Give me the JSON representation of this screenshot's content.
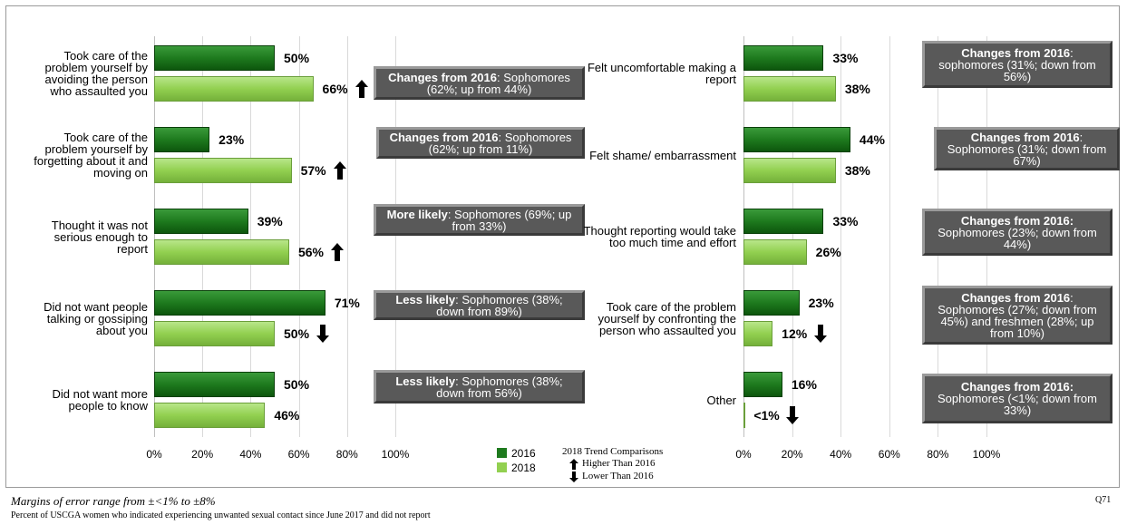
{
  "chart_data": [
    {
      "type": "bar",
      "orientation": "horizontal",
      "categories": [
        "Took care of the problem yourself by avoiding the person who assaulted you",
        "Took care of the problem yourself by forgetting about it and moving on",
        "Thought it was not serious enough to report",
        "Did not want people talking or gossiping about you",
        "Did not want more people to know"
      ],
      "series": [
        {
          "name": "2016",
          "color": "#1e7a1e",
          "values": [
            50,
            23,
            39,
            71,
            50
          ],
          "value_labels": [
            "50%",
            "23%",
            "39%",
            "71%",
            "50%"
          ]
        },
        {
          "name": "2018",
          "color": "#92d050",
          "values": [
            66,
            57,
            56,
            50,
            46
          ],
          "value_labels": [
            "66%",
            "57%",
            "56%",
            "50%",
            "46%"
          ]
        }
      ],
      "trends": [
        "up",
        "up",
        "up",
        "down",
        null
      ],
      "annotations": [
        {
          "bold": "Changes from 2016",
          "text": ": Sophomores (62%; up from 44%)"
        },
        {
          "bold": "Changes from 2016",
          "text": ": Sophomores (62%; up from 11%)"
        },
        {
          "bold": "More likely",
          "text": ": Sophomores (69%; up from 33%)"
        },
        {
          "bold": "Less likely",
          "text": ": Sophomores (38%; down from 89%)"
        },
        {
          "bold": "Less likely",
          "text": ": Sophomores (38%; down from 56%)"
        }
      ],
      "xlim": [
        0,
        100
      ],
      "xticks": [
        {
          "value": 0,
          "label": "0%"
        },
        {
          "value": 20,
          "label": "20%"
        },
        {
          "value": 40,
          "label": "40%"
        },
        {
          "value": 60,
          "label": "60%"
        },
        {
          "value": 80,
          "label": "80%"
        },
        {
          "value": 100,
          "label": "100%"
        }
      ],
      "grid": true
    },
    {
      "type": "bar",
      "orientation": "horizontal",
      "categories": [
        "Felt uncomfortable making a report",
        "Felt shame/ embarrassment",
        "Thought reporting would take too much time and effort",
        "Took care of the problem yourself by confronting the person who assaulted you",
        "Other"
      ],
      "series": [
        {
          "name": "2016",
          "color": "#1e7a1e",
          "values": [
            33,
            44,
            33,
            23,
            16
          ],
          "value_labels": [
            "33%",
            "44%",
            "33%",
            "23%",
            "16%"
          ]
        },
        {
          "name": "2018",
          "color": "#92d050",
          "values": [
            38,
            38,
            26,
            12,
            0.5
          ],
          "value_labels": [
            "38%",
            "38%",
            "26%",
            "12%",
            "<1%"
          ]
        }
      ],
      "trends": [
        null,
        null,
        null,
        "down",
        "down"
      ],
      "annotations": [
        {
          "bold": "Changes from 2016",
          "text": ": sophomores (31%; down from 56%)"
        },
        {
          "bold": "Changes from 2016",
          "text": ": Sophomores (31%; down from 67%)"
        },
        {
          "bold": "Changes from 2016:",
          "text": " Sophomores (23%; down from 44%)"
        },
        {
          "bold": "Changes from 2016",
          "text": ": Sophomores (27%; down from 45%) and freshmen (28%; up from 10%)"
        },
        {
          "bold": "Changes from 2016:",
          "text": " Sophomores (<1%; down from 33%)"
        }
      ],
      "xlim": [
        0,
        100
      ],
      "xticks": [
        {
          "value": 0,
          "label": "0%"
        },
        {
          "value": 20,
          "label": "20%"
        },
        {
          "value": 40,
          "label": "40%"
        },
        {
          "value": 60,
          "label": "60%"
        },
        {
          "value": 80,
          "label": "80%"
        },
        {
          "value": 100,
          "label": "100%"
        }
      ],
      "grid": true
    }
  ],
  "trend_legend": {
    "title": "2018 Trend Comparisons",
    "up": "Higher Than 2016",
    "down": "Lower Than 2016"
  },
  "footnotes": {
    "margin": "Margins of error range from ±<1% to ±8%",
    "note": "Percent of USCGA women who indicated experiencing unwanted sexual contact since June 2017 and did not report",
    "question": "Q71"
  }
}
